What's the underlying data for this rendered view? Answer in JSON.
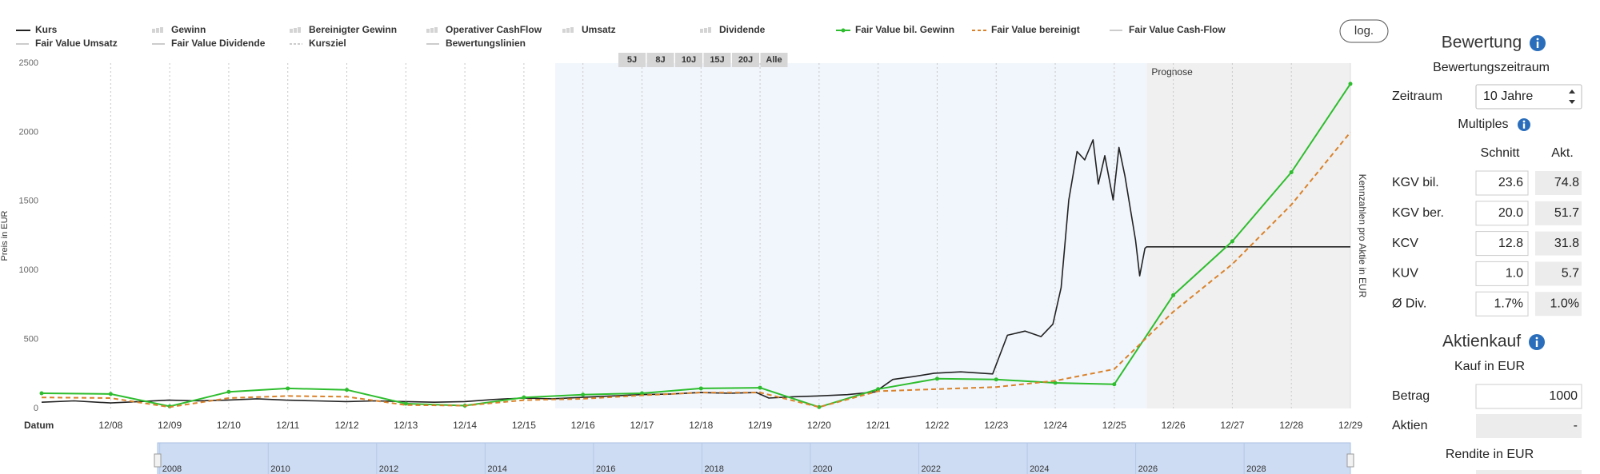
{
  "chart_data": {
    "type": "line",
    "y_label": "Preis in EUR",
    "x_label": "Datum",
    "right_label": "Kennzahlen pro Aktie in EUR",
    "forecast_label": "Prognose",
    "xlim": [
      2007.75,
      2029.92
    ],
    "xticks": [
      {
        "value": 2008.92,
        "label": "12/08"
      },
      {
        "value": 2009.92,
        "label": "12/09"
      },
      {
        "value": 2010.92,
        "label": "12/10"
      },
      {
        "value": 2011.92,
        "label": "12/11"
      },
      {
        "value": 2012.92,
        "label": "12/12"
      },
      {
        "value": 2013.92,
        "label": "12/13"
      },
      {
        "value": 2014.92,
        "label": "12/14"
      },
      {
        "value": 2015.92,
        "label": "12/15"
      },
      {
        "value": 2016.92,
        "label": "12/16"
      },
      {
        "value": 2017.92,
        "label": "12/17"
      },
      {
        "value": 2018.92,
        "label": "12/18"
      },
      {
        "value": 2019.92,
        "label": "12/19"
      },
      {
        "value": 2020.92,
        "label": "12/20"
      },
      {
        "value": 2021.92,
        "label": "12/21"
      },
      {
        "value": 2022.92,
        "label": "12/22"
      },
      {
        "value": 2023.92,
        "label": "12/23"
      },
      {
        "value": 2024.92,
        "label": "12/24"
      },
      {
        "value": 2025.92,
        "label": "12/25"
      },
      {
        "value": 2026.92,
        "label": "12/26"
      },
      {
        "value": 2027.92,
        "label": "12/27"
      },
      {
        "value": 2028.92,
        "label": "12/28"
      },
      {
        "value": 2029.92,
        "label": "12/29"
      }
    ],
    "ylim": [
      0,
      2500
    ],
    "yticks": [
      0,
      500,
      1000,
      1500,
      2000,
      2500
    ],
    "x_grid": true,
    "selected_range": [
      2016.45,
      2026.47
    ],
    "forecast_range": [
      2026.47,
      2029.92
    ],
    "series": [
      {
        "name": "Kurs",
        "color": "#222222",
        "x": [
          2007.75,
          2008.3,
          2008.92,
          2009.4,
          2009.9,
          2010.4,
          2010.89,
          2011.4,
          2011.89,
          2012.4,
          2012.91,
          2013.4,
          2013.9,
          2014.4,
          2014.92,
          2015.4,
          2015.9,
          2016.4,
          2016.88,
          2017.4,
          2017.9,
          2018.4,
          2018.9,
          2019.4,
          2019.86,
          2020.07,
          2020.5,
          2020.88,
          2021.4,
          2021.87,
          2022.17,
          2022.5,
          2022.87,
          2023.32,
          2023.86,
          2024.11,
          2024.41,
          2024.68,
          2024.88,
          2025.02,
          2025.15,
          2025.29,
          2025.42,
          2025.56,
          2025.65,
          2025.76,
          2025.9,
          2026.0,
          2026.1,
          2026.19,
          2026.28,
          2026.35,
          2026.44,
          2026.47,
          2029.92
        ],
        "values": [
          45,
          55,
          40,
          50,
          60,
          55,
          60,
          70,
          60,
          55,
          50,
          55,
          50,
          45,
          50,
          65,
          75,
          70,
          80,
          90,
          100,
          105,
          115,
          110,
          115,
          75,
          85,
          90,
          100,
          120,
          210,
          230,
          255,
          265,
          250,
          530,
          560,
          520,
          610,
          875,
          1510,
          1860,
          1800,
          1945,
          1625,
          1830,
          1510,
          1890,
          1685,
          1450,
          1220,
          960,
          1160,
          1170,
          1170
        ]
      },
      {
        "name": "Fair Value bil. Gewinn",
        "color": "#2ebd2e",
        "x": [
          2007.75,
          2008.92,
          2009.92,
          2010.92,
          2011.92,
          2012.92,
          2013.92,
          2014.92,
          2015.92,
          2016.92,
          2017.92,
          2018.92,
          2019.92,
          2020.92,
          2021.92,
          2022.92,
          2023.92,
          2024.92,
          2025.92,
          2026.92,
          2027.92,
          2028.92,
          2029.92
        ],
        "values": [
          110,
          105,
          15,
          120,
          145,
          135,
          35,
          20,
          80,
          100,
          110,
          145,
          150,
          10,
          140,
          215,
          210,
          185,
          175,
          820,
          1210,
          1710,
          2350
        ]
      },
      {
        "name": "Fair Value bereinigt",
        "color": "#d9822b",
        "dashed": true,
        "x": [
          2007.75,
          2008.92,
          2009.92,
          2010.92,
          2011.92,
          2012.92,
          2013.92,
          2014.92,
          2015.92,
          2016.92,
          2017.92,
          2018.92,
          2019.92,
          2020.92,
          2021.92,
          2022.92,
          2023.92,
          2024.92,
          2025.92,
          2026.92,
          2027.92,
          2028.92,
          2029.92
        ],
        "values": [
          80,
          75,
          10,
          75,
          90,
          85,
          25,
          20,
          60,
          70,
          95,
          115,
          115,
          10,
          125,
          140,
          155,
          200,
          285,
          700,
          1045,
          1475,
          2000
        ]
      }
    ],
    "inactive_series": [
      "Gewinn",
      "Bereinigter Gewinn",
      "Operativer CashFlow",
      "Umsatz",
      "Dividende",
      "Fair Value Cash-Flow",
      "Fair Value Umsatz",
      "Fair Value Dividende",
      "Kursziel",
      "Bewertungslinien"
    ],
    "navigator": {
      "xlim": [
        2007.96,
        2029.96
      ],
      "xticks": [
        2008,
        2010,
        2012,
        2014,
        2016,
        2018,
        2020,
        2022,
        2024,
        2026,
        2028
      ]
    }
  },
  "controls": {
    "log_button": "log.",
    "range_buttons": [
      "5J",
      "8J",
      "10J",
      "15J",
      "20J",
      "Alle"
    ]
  },
  "panel": {
    "title": "Bewertung",
    "period_label": "Bewertungszeitraum",
    "period_field": "Zeitraum",
    "period_value": "10 Jahre",
    "multiples_title": "Multiples",
    "col_avg": "Schnitt",
    "col_current": "Akt.",
    "multiples": [
      [
        "KGV bil.",
        "23.6",
        "74.8"
      ],
      [
        "KGV ber.",
        "20.0",
        "51.7"
      ],
      [
        "KCV",
        "12.8",
        "31.8"
      ],
      [
        "KUV",
        "1.0",
        "5.7"
      ],
      [
        "Ø Div.",
        "1.7%",
        "1.0%"
      ]
    ],
    "purchase_title": "Aktienkauf",
    "purchase_label": "Kauf in EUR",
    "amount_label": "Betrag",
    "amount_value": "1000",
    "shares_label": "Aktien",
    "shares_value": "-",
    "return_label": "Rendite in EUR"
  }
}
